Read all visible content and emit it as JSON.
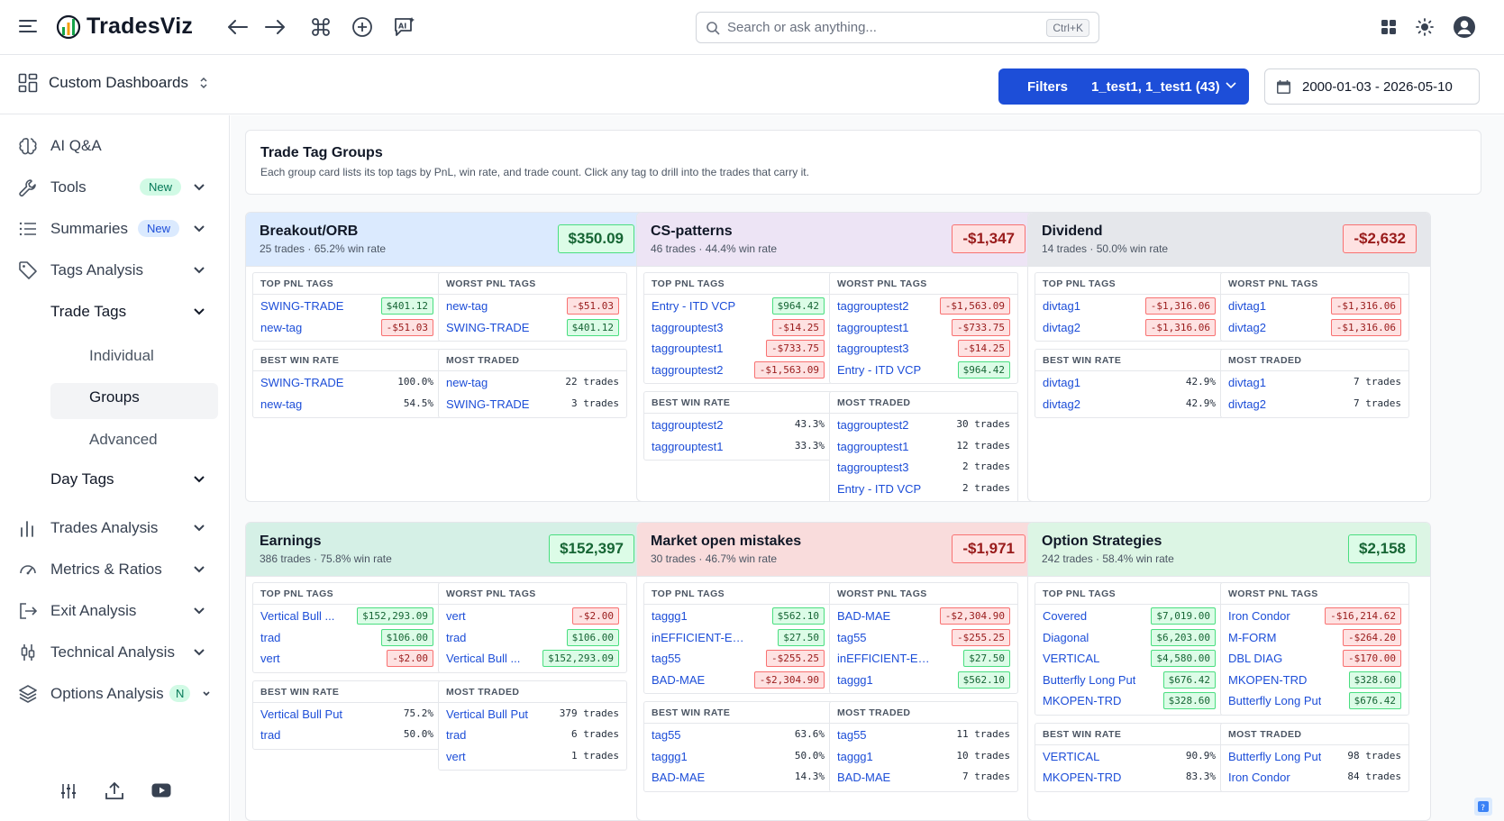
{
  "app": {
    "name": "TradesViz"
  },
  "search": {
    "placeholder": "Search or ask anything...",
    "shortcut": "Ctrl+K"
  },
  "dashboard": {
    "label": "Custom Dashboards"
  },
  "filters": {
    "label": "Filters",
    "account": "1_test1, 1_test1 (43)",
    "date_range": "2000-01-03 - 2026-05-10"
  },
  "sidebar": {
    "items": [
      {
        "label": "AI Q&A"
      },
      {
        "label": "Tools",
        "badge": "New"
      },
      {
        "label": "Summaries",
        "badge": "New"
      },
      {
        "label": "Tags Analysis"
      },
      {
        "label": "Trade Tags"
      },
      {
        "label": "Individual"
      },
      {
        "label": "Groups"
      },
      {
        "label": "Advanced"
      },
      {
        "label": "Day Tags"
      },
      {
        "label": "Trades Analysis"
      },
      {
        "label": "Metrics & Ratios"
      },
      {
        "label": "Exit Analysis"
      },
      {
        "label": "Technical Analysis"
      },
      {
        "label": "Options Analysis",
        "badge": "N"
      }
    ]
  },
  "page": {
    "title": "Trade Tag Groups",
    "description": "Each group card lists its top tags by PnL, win rate, and trade count. Click any tag to drill into the trades that carry it."
  },
  "labels": {
    "top_pnl": "TOP PNL TAGS",
    "worst_pnl": "WORST PNL TAGS",
    "best_win": "BEST WIN RATE",
    "most_traded": "MOST TRADED"
  },
  "groups": [
    {
      "name": "Breakout/ORB",
      "summary": "25 trades · 65.2% win rate",
      "total": "$350.09",
      "total_sign": "pos",
      "theme": "#dbeafe",
      "top_pnl": [
        [
          "SWING-TRADE",
          "$401.12",
          "pos"
        ],
        [
          "new-tag",
          "-$51.03",
          "neg"
        ]
      ],
      "worst_pnl": [
        [
          "new-tag",
          "-$51.03",
          "neg"
        ],
        [
          "SWING-TRADE",
          "$401.12",
          "pos"
        ]
      ],
      "best_win": [
        [
          "SWING-TRADE",
          "100.0%"
        ],
        [
          "new-tag",
          "54.5%"
        ]
      ],
      "most_traded": [
        [
          "new-tag",
          "22 trades"
        ],
        [
          "SWING-TRADE",
          "3 trades"
        ]
      ]
    },
    {
      "name": "CS-patterns",
      "summary": "46 trades · 44.4% win rate",
      "total": "-$1,347",
      "total_sign": "neg",
      "theme": "#ede4f5",
      "top_pnl": [
        [
          "Entry - ITD VCP",
          "$964.42",
          "pos"
        ],
        [
          "taggrouptest3",
          "-$14.25",
          "neg"
        ],
        [
          "taggrouptest1",
          "-$733.75",
          "neg"
        ],
        [
          "taggrouptest2",
          "-$1,563.09",
          "neg"
        ]
      ],
      "worst_pnl": [
        [
          "taggrouptest2",
          "-$1,563.09",
          "neg"
        ],
        [
          "taggrouptest1",
          "-$733.75",
          "neg"
        ],
        [
          "taggrouptest3",
          "-$14.25",
          "neg"
        ],
        [
          "Entry - ITD VCP",
          "$964.42",
          "pos"
        ]
      ],
      "best_win": [
        [
          "taggrouptest2",
          "43.3%"
        ],
        [
          "taggrouptest1",
          "33.3%"
        ]
      ],
      "most_traded": [
        [
          "taggrouptest2",
          "30 trades"
        ],
        [
          "taggrouptest1",
          "12 trades"
        ],
        [
          "taggrouptest3",
          "2 trades"
        ],
        [
          "Entry - ITD VCP",
          "2 trades"
        ]
      ]
    },
    {
      "name": "Dividend",
      "summary": "14 trades · 50.0% win rate",
      "total": "-$2,632",
      "total_sign": "neg",
      "theme": "#e5e7eb",
      "top_pnl": [
        [
          "divtag1",
          "-$1,316.06",
          "neg"
        ],
        [
          "divtag2",
          "-$1,316.06",
          "neg"
        ]
      ],
      "worst_pnl": [
        [
          "divtag1",
          "-$1,316.06",
          "neg"
        ],
        [
          "divtag2",
          "-$1,316.06",
          "neg"
        ]
      ],
      "best_win": [
        [
          "divtag1",
          "42.9%"
        ],
        [
          "divtag2",
          "42.9%"
        ]
      ],
      "most_traded": [
        [
          "divtag1",
          "7 trades"
        ],
        [
          "divtag2",
          "7 trades"
        ]
      ]
    },
    {
      "name": "Earnings",
      "summary": "386 trades · 75.8% win rate",
      "total": "$152,397",
      "total_sign": "pos",
      "theme": "#d5f0e6",
      "top_pnl": [
        [
          "Vertical Bull ...",
          "$152,293.09",
          "pos"
        ],
        [
          "trad",
          "$106.00",
          "pos"
        ],
        [
          "vert",
          "-$2.00",
          "neg"
        ]
      ],
      "worst_pnl": [
        [
          "vert",
          "-$2.00",
          "neg"
        ],
        [
          "trad",
          "$106.00",
          "pos"
        ],
        [
          "Vertical Bull ...",
          "$152,293.09",
          "pos"
        ]
      ],
      "best_win": [
        [
          "Vertical Bull Put",
          "75.2%"
        ],
        [
          "trad",
          "50.0%"
        ]
      ],
      "most_traded": [
        [
          "Vertical Bull Put",
          "379 trades"
        ],
        [
          "trad",
          "6 trades"
        ],
        [
          "vert",
          "1 trades"
        ]
      ]
    },
    {
      "name": "Market open mistakes",
      "summary": "30 trades · 46.7% win rate",
      "total": "-$1,971",
      "total_sign": "neg",
      "theme": "#f9dcdc",
      "top_pnl": [
        [
          "taggg1",
          "$562.10",
          "pos"
        ],
        [
          "inEFFICIENT-EXIT",
          "$27.50",
          "pos"
        ],
        [
          "tag55",
          "-$255.25",
          "neg"
        ],
        [
          "BAD-MAE",
          "-$2,304.90",
          "neg"
        ]
      ],
      "worst_pnl": [
        [
          "BAD-MAE",
          "-$2,304.90",
          "neg"
        ],
        [
          "tag55",
          "-$255.25",
          "neg"
        ],
        [
          "inEFFICIENT-EXIT",
          "$27.50",
          "pos"
        ],
        [
          "taggg1",
          "$562.10",
          "pos"
        ]
      ],
      "best_win": [
        [
          "tag55",
          "63.6%"
        ],
        [
          "taggg1",
          "50.0%"
        ],
        [
          "BAD-MAE",
          "14.3%"
        ]
      ],
      "most_traded": [
        [
          "tag55",
          "11 trades"
        ],
        [
          "taggg1",
          "10 trades"
        ],
        [
          "BAD-MAE",
          "7 trades"
        ]
      ]
    },
    {
      "name": "Option Strategies",
      "summary": "242 trades · 58.4% win rate",
      "total": "$2,158",
      "total_sign": "pos",
      "theme": "#dcf5e4",
      "top_pnl": [
        [
          "Covered",
          "$7,019.00",
          "pos"
        ],
        [
          "Diagonal",
          "$6,203.00",
          "pos"
        ],
        [
          "VERTICAL",
          "$4,580.00",
          "pos"
        ],
        [
          "Butterfly Long Put",
          "$676.42",
          "pos"
        ],
        [
          "MKOPEN-TRD",
          "$328.60",
          "pos"
        ]
      ],
      "worst_pnl": [
        [
          "Iron Condor",
          "-$16,214.62",
          "neg"
        ],
        [
          "M-FORM",
          "-$264.20",
          "neg"
        ],
        [
          "DBL DIAG",
          "-$170.00",
          "neg"
        ],
        [
          "MKOPEN-TRD",
          "$328.60",
          "pos"
        ],
        [
          "Butterfly Long Put",
          "$676.42",
          "pos"
        ]
      ],
      "best_win": [
        [
          "VERTICAL",
          "90.9%"
        ],
        [
          "MKOPEN-TRD",
          "83.3%"
        ]
      ],
      "most_traded": [
        [
          "Butterfly Long Put",
          "98 trades"
        ],
        [
          "Iron Condor",
          "84 trades"
        ]
      ]
    }
  ]
}
